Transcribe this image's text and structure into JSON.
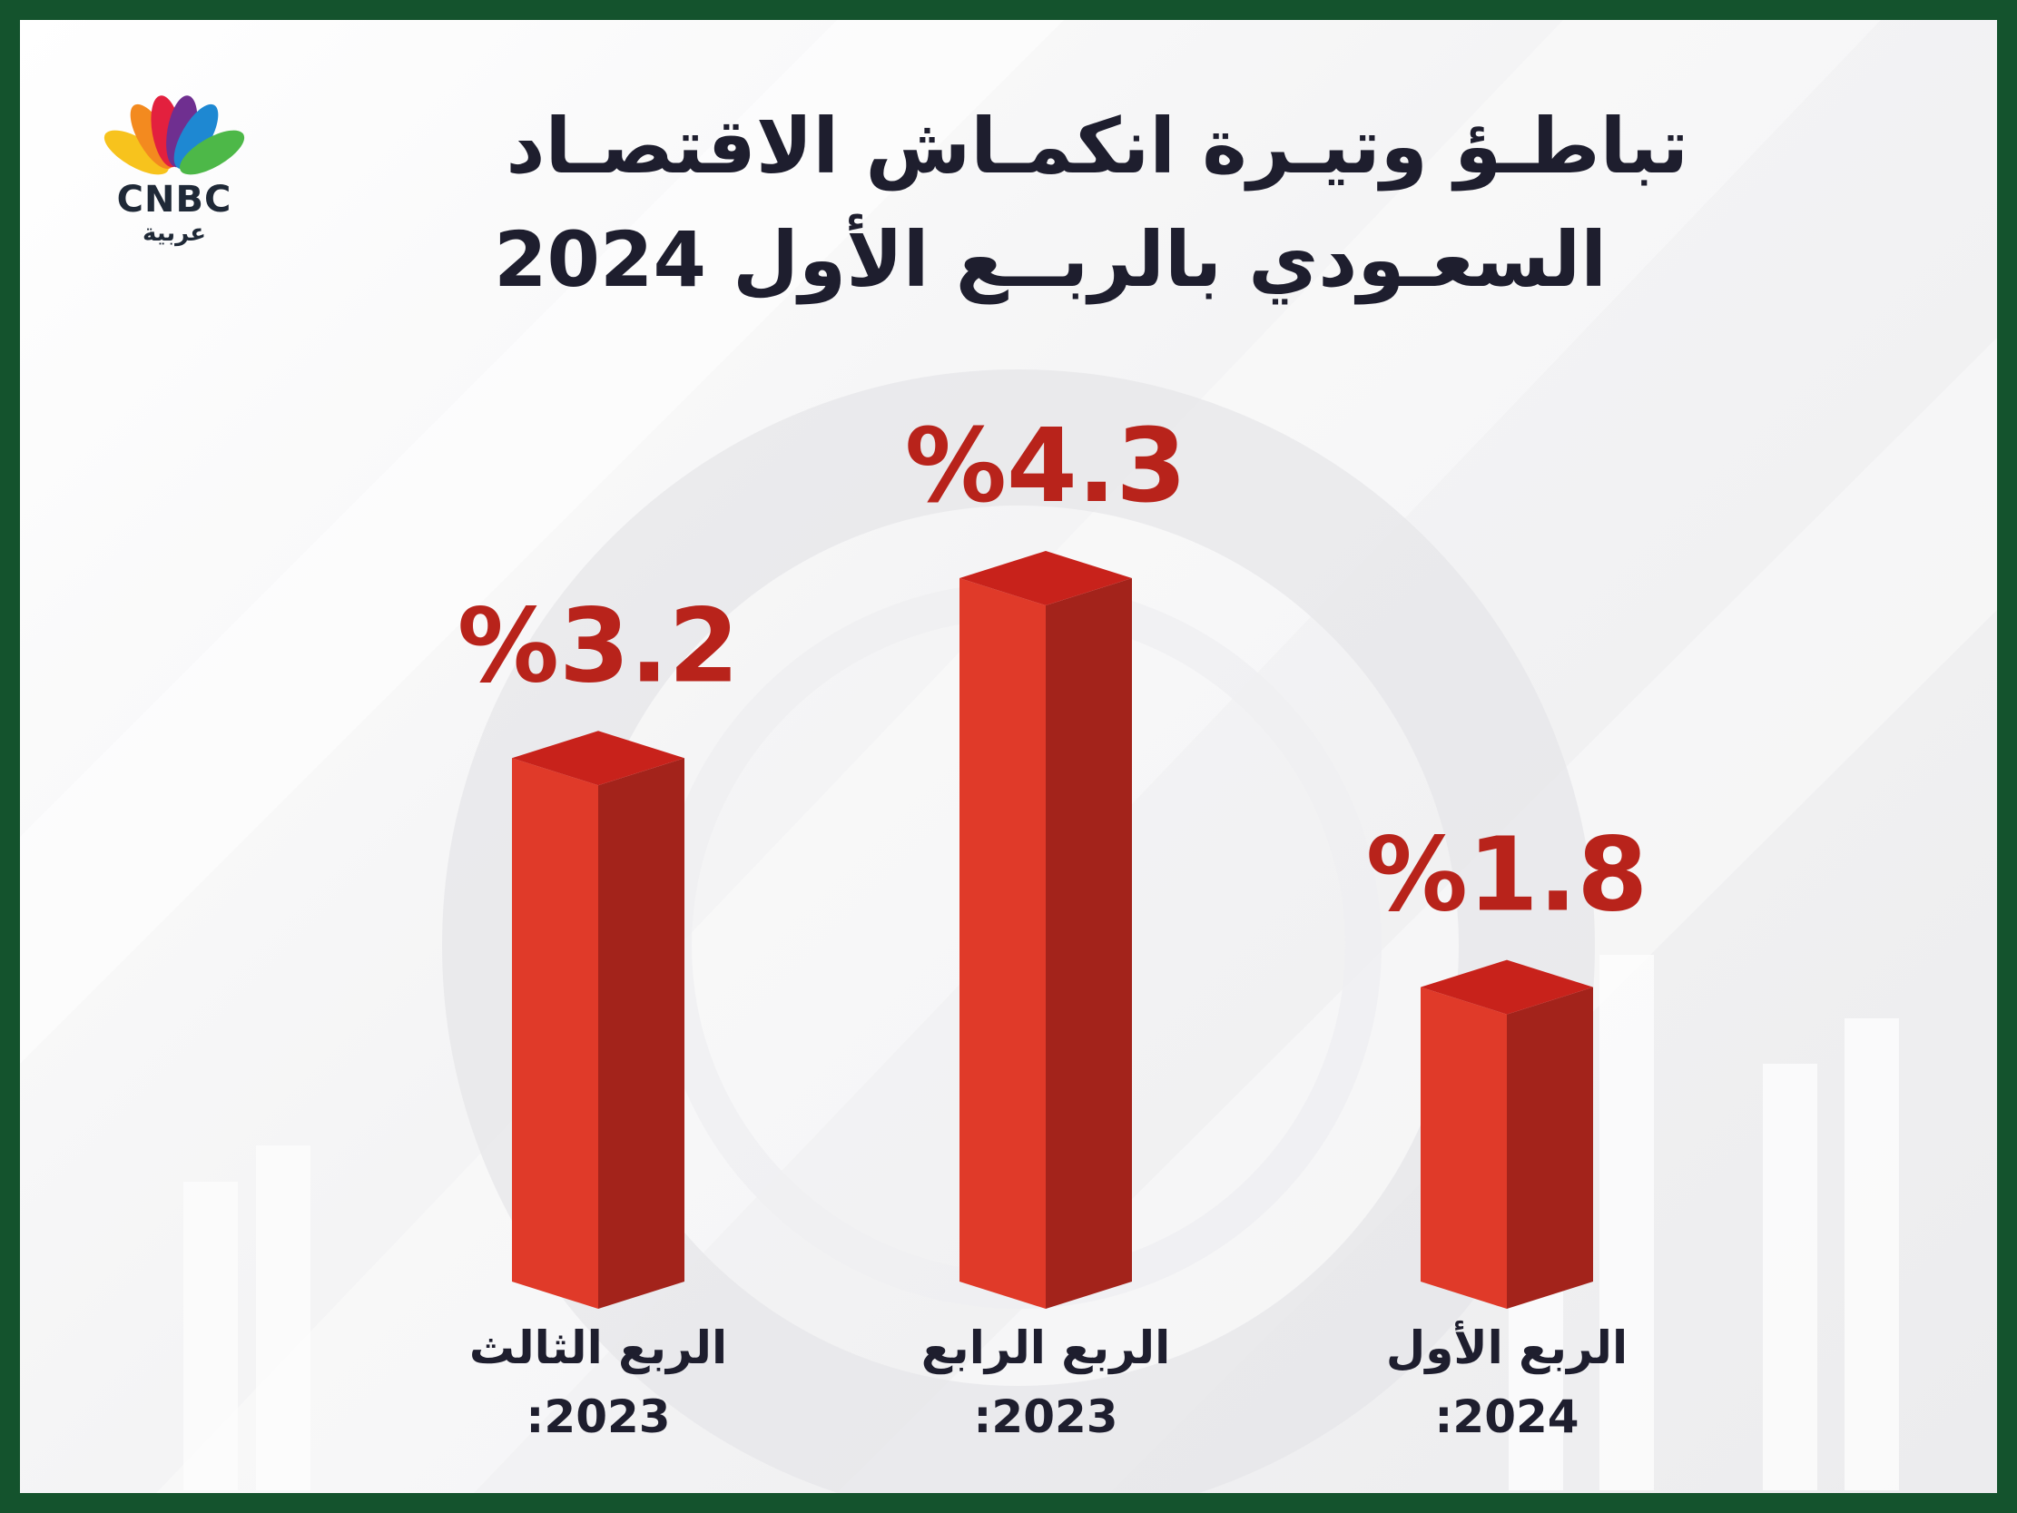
{
  "brand": {
    "logo_text": "CNBC",
    "logo_subtext": "عربية",
    "peacock_colors": [
      "#f7c31d",
      "#f38a1f",
      "#e3203e",
      "#6f2f90",
      "#1e88d2",
      "#4db848"
    ]
  },
  "title": {
    "line1": "تباطـؤ وتيـرة انكمـاش الاقتصـاد",
    "line2": "السعـودي بالربــع الأول 2024"
  },
  "colors": {
    "frame": "#14532d",
    "bar_front": "#e03a29",
    "bar_side": "#a3231b",
    "bar_top": "#c8221b",
    "value_label": "#b8231b"
  },
  "chart_data": {
    "type": "bar",
    "categories": [
      {
        "line1": "الربع الثالث",
        "line2": ":2023"
      },
      {
        "line1": "الربع الرابع",
        "line2": ":2023"
      },
      {
        "line1": "الربع الأول",
        "line2": ":2024"
      }
    ],
    "values": [
      3.2,
      4.3,
      1.8
    ],
    "value_labels": [
      "%3.2",
      "%4.3",
      "%1.8"
    ],
    "unit": "%",
    "ylim": [
      0,
      4.3
    ],
    "grid": false,
    "legend": "none"
  }
}
